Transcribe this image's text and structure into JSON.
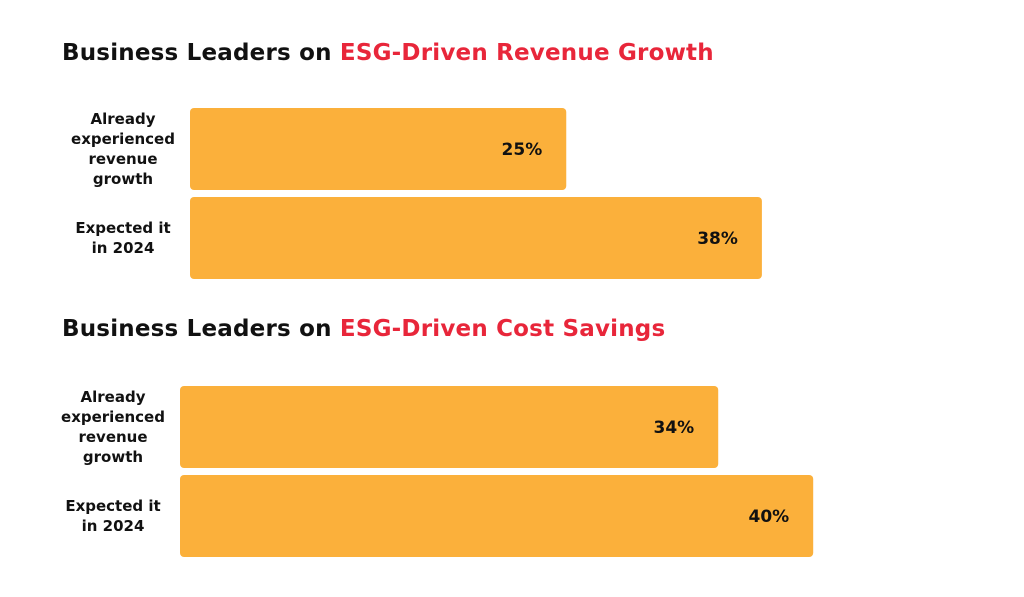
{
  "chart_data": [
    {
      "type": "bar",
      "orientation": "horizontal",
      "title": "Business Leaders on ESG-Driven Revenue Growth",
      "title_parts": [
        "Business Leaders on ",
        "ESG-Driven Revenue Growth"
      ],
      "categories": [
        "Already experienced revenue growth",
        "Expected it in 2024"
      ],
      "category_lines": [
        [
          "Already",
          "experienced",
          "revenue",
          "growth"
        ],
        [
          "Expected it",
          "in 2024"
        ]
      ],
      "values": [
        25,
        38
      ],
      "value_labels": [
        "25%",
        "38%"
      ],
      "unit": "%",
      "xlim": [
        0,
        40
      ],
      "grid": false,
      "colors": {
        "bar": "#fbb03b",
        "accent": "#e8263a",
        "text": "#111111"
      }
    },
    {
      "type": "bar",
      "orientation": "horizontal",
      "title": "Business Leaders on ESG-Driven Cost Savings",
      "title_parts": [
        "Business Leaders on ",
        "ESG-Driven Cost Savings"
      ],
      "categories": [
        "Already experienced revenue growth",
        "Expected it in 2024"
      ],
      "category_lines": [
        [
          "Already",
          "experienced",
          "revenue",
          "growth"
        ],
        [
          "Expected it",
          "in 2024"
        ]
      ],
      "values": [
        34,
        40
      ],
      "value_labels": [
        "34%",
        "40%"
      ],
      "unit": "%",
      "xlim": [
        0,
        40
      ],
      "grid": false,
      "colors": {
        "bar": "#fbb03b",
        "accent": "#e8263a",
        "text": "#111111"
      }
    }
  ]
}
